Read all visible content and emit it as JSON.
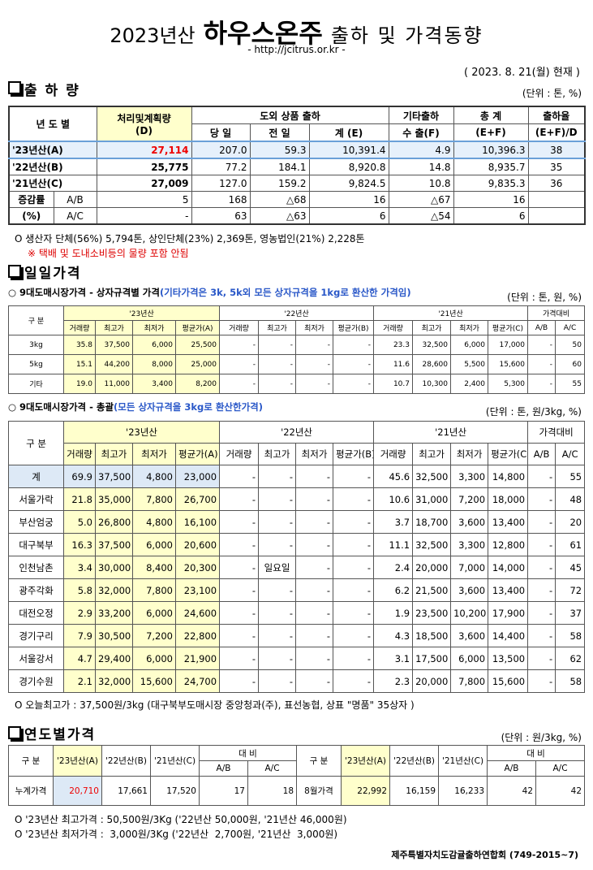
{
  "header": {
    "year": "2023년산",
    "title": "하우스온주",
    "subtitle": "출하 및 가격동향",
    "url": "- http://jcitrus.or.kr -",
    "date": "( 2023. 8. 21(월) 현재 )"
  },
  "shipment": {
    "heading": "출 하 량",
    "unit": "(단위 : 톤, %)",
    "columns": {
      "year": "년 도 별",
      "plan": "처리및계획량",
      "plan_code": "(D)",
      "outside": "도외 상품 출하",
      "other": "기타출하",
      "total": "총 계",
      "rate": "출하율",
      "today": "당 일",
      "yesterday": "전 일",
      "sum": "계 (E)",
      "export": "수 출(F)",
      "total_code": "(E+F)",
      "rate_code": "(E+F)/D"
    },
    "rows": [
      {
        "label": "'23년산(A)",
        "values": [
          "27,114",
          "207.0",
          "59.3",
          "10,391.4",
          "4.9",
          "10,396.3",
          "38"
        ]
      },
      {
        "label": "'22년산(B)",
        "values": [
          "25,775",
          "77.2",
          "184.1",
          "8,920.8",
          "14.8",
          "8,935.7",
          "35"
        ]
      },
      {
        "label": "'21년산(C)",
        "values": [
          "27,009",
          "127.0",
          "159.2",
          "9,824.5",
          "10.8",
          "9,835.3",
          "36"
        ]
      }
    ],
    "change_rows": [
      {
        "label": "증감률",
        "ratio": "A/B",
        "values": [
          "5",
          "168",
          "△68",
          "16",
          "△67",
          "16",
          null
        ]
      },
      {
        "label": "(%)",
        "ratio": "A/C",
        "values": [
          "-",
          "63",
          "△63",
          "6",
          "△54",
          "6",
          null
        ]
      }
    ],
    "notes": [
      "O 생산자 단체(56%) 5,794톤, 상인단체(23%) 2,369톤, 영농법인(21%) 2,228톤",
      "※ 택배 및 도내소비등의 물량 포함 안됨"
    ]
  },
  "daily": {
    "heading": "일일가격",
    "by_size": {
      "title": "○ 9대도매시장가격 - 상자규격별 가격",
      "highlight": "(기타가격은 3k, 5k외 모든 상자규격을 1kg로 환산한 가격임)",
      "unit": "(단위 : 톤, 원, %)",
      "label": "구 분",
      "groups": [
        "'23년산",
        "'22년산",
        "'21년산",
        "가격대비"
      ],
      "subcolumns": [
        "거래량",
        "최고가",
        "최저가",
        "평균가(A)",
        "거래량",
        "최고가",
        "최저가",
        "평균가(B)",
        "거래량",
        "최고가",
        "최저가",
        "평균가(C)",
        "A/B",
        "A/C"
      ],
      "rows": [
        {
          "label": "3kg",
          "values": [
            "35.8",
            "37,500",
            "6,000",
            "25,500",
            "-",
            "-",
            "-",
            "-",
            "23.3",
            "32,500",
            "6,000",
            "17,000",
            "-",
            "50"
          ]
        },
        {
          "label": "5kg",
          "values": [
            "15.1",
            "44,200",
            "8,000",
            "25,000",
            "-",
            "-",
            "-",
            "-",
            "11.6",
            "28,600",
            "5,500",
            "15,600",
            "-",
            "60"
          ]
        },
        {
          "label": "기타",
          "values": [
            "19.0",
            "11,000",
            "3,400",
            "8,200",
            "-",
            "-",
            "-",
            "-",
            "10.7",
            "10,300",
            "2,400",
            "5,300",
            "-",
            "55"
          ]
        }
      ]
    },
    "summary": {
      "title": "○ 9대도매시장가격 - 총괄",
      "highlight": "(모든 상자규격을 3kg로 환산한가격)",
      "unit": "(단위 : 톤, 원/3kg, %)",
      "label": "구 분",
      "groups": [
        "'23년산",
        "'22년산",
        "'21년산",
        "가격대비"
      ],
      "subcolumns": [
        "거래량",
        "최고가",
        "최저가",
        "평균가(A)",
        "거래량",
        "최고가",
        "최저가",
        "평균가(B)",
        "거래량",
        "최고가",
        "최저가",
        "평균가(C)",
        "A/B",
        "A/C"
      ],
      "rows": [
        {
          "label": "계",
          "values": [
            "69.9",
            "37,500",
            "4,800",
            "23,000",
            "-",
            "-",
            "-",
            "-",
            "45.6",
            "32,500",
            "3,300",
            "14,800",
            "-",
            "55"
          ]
        },
        {
          "label": "서울가락",
          "values": [
            "21.8",
            "35,000",
            "7,800",
            "26,700",
            "-",
            "-",
            "-",
            "-",
            "10.6",
            "31,000",
            "7,200",
            "18,000",
            "-",
            "48"
          ]
        },
        {
          "label": "부산엄궁",
          "values": [
            "5.0",
            "26,800",
            "4,800",
            "16,100",
            "-",
            "-",
            "-",
            "-",
            "3.7",
            "18,700",
            "3,600",
            "13,400",
            "-",
            "20"
          ]
        },
        {
          "label": "대구북부",
          "values": [
            "16.3",
            "37,500",
            "6,000",
            "20,600",
            "-",
            "-",
            "-",
            "-",
            "11.1",
            "32,500",
            "3,300",
            "12,800",
            "-",
            "61"
          ]
        },
        {
          "label": "인천남촌",
          "values": [
            "3.4",
            "30,000",
            "8,400",
            "20,300",
            "-",
            "일요일",
            "-",
            "-",
            "2.4",
            "20,000",
            "7,000",
            "14,000",
            "-",
            "45"
          ]
        },
        {
          "label": "광주각화",
          "values": [
            "5.8",
            "32,000",
            "7,800",
            "23,100",
            "-",
            "-",
            "-",
            "-",
            "6.2",
            "21,500",
            "3,600",
            "13,400",
            "-",
            "72"
          ]
        },
        {
          "label": "대전오정",
          "values": [
            "2.9",
            "33,200",
            "6,000",
            "24,600",
            "-",
            "-",
            "-",
            "-",
            "1.9",
            "23,500",
            "10,200",
            "17,900",
            "-",
            "37"
          ]
        },
        {
          "label": "경기구리",
          "values": [
            "7.9",
            "30,500",
            "7,200",
            "22,800",
            "-",
            "-",
            "-",
            "-",
            "4.3",
            "18,500",
            "3,600",
            "14,400",
            "-",
            "58"
          ]
        },
        {
          "label": "서울강서",
          "values": [
            "4.7",
            "29,400",
            "6,000",
            "21,900",
            "-",
            "-",
            "-",
            "-",
            "3.1",
            "17,500",
            "6,000",
            "13,500",
            "-",
            "62"
          ]
        },
        {
          "label": "경기수원",
          "values": [
            "2.1",
            "32,000",
            "15,600",
            "24,700",
            "-",
            "-",
            "-",
            "-",
            "2.3",
            "20,000",
            "7,800",
            "15,600",
            "-",
            "58"
          ]
        }
      ]
    },
    "note": "O 오늘최고가 : 37,500원/3kg (대구북부도매시장 중앙청과(주), 표선농협, 상표 \"명품\" 35상자 )"
  },
  "yearly": {
    "heading": "연도별가격",
    "unit": "(단위 : 원/3kg, %)",
    "halves": [
      {
        "columns": [
          "구 분",
          "'23년산(A)",
          "'22년산(B)",
          "'21년산(C)"
        ],
        "compare": "대 비",
        "ratios": [
          "A/B",
          "A/C"
        ],
        "row": {
          "label": "누계가격",
          "values": [
            "20,710",
            "17,661",
            "17,520",
            "17",
            "18"
          ]
        }
      },
      {
        "columns": [
          "구 분",
          "'23년산(A)",
          "'22년산(B)",
          "'21년산(C)"
        ],
        "compare": "대 비",
        "ratios": [
          "A/B",
          "A/C"
        ],
        "row": {
          "label": "8월가격",
          "values": [
            "22,992",
            "16,159",
            "16,233",
            "42",
            "42"
          ]
        }
      }
    ],
    "notes": [
      "O '23년산 최고가격 : 50,500원/3Kg ('22년산 50,000원, '21년산 46,000원)",
      "O '23년산 최저가격 :  3,000원/3Kg ('22년산  2,700원, '21년산  3,000원)"
    ]
  },
  "footer": "제주특별자치도감귤출하연합회 (749-2015~7)"
}
